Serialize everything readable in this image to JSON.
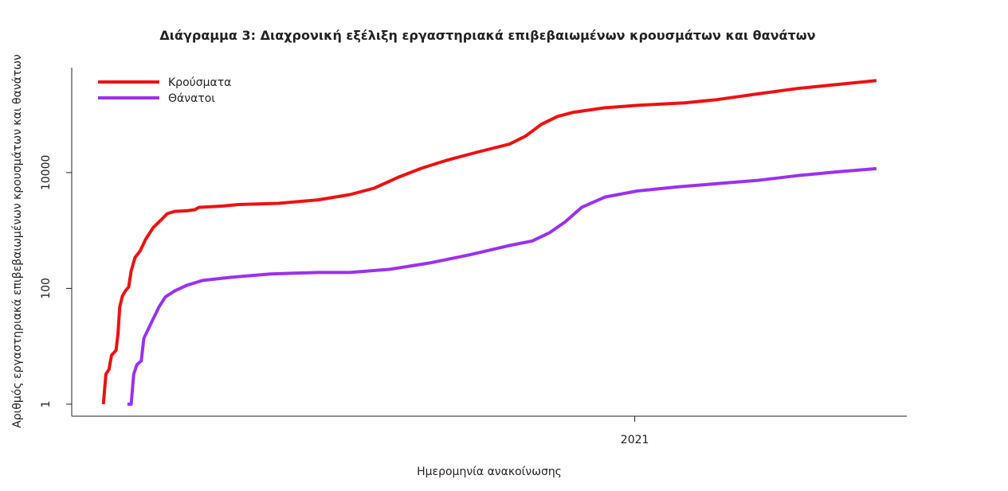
{
  "chart_data": {
    "type": "line",
    "title": "Διάγραμμα 3: Διαχρονική εξέλιξη εργαστηριακά επιβεβαιωμένων κρουσμάτων και θανάτων",
    "x_label": "Ημερομηνία ανακοίνωσης",
    "y_label": "Αριθμός εργαστηριακά επιβεβαιωμένων κρουσμάτων και θανάτων",
    "y_log": true,
    "legend_position": "top-left",
    "xlim": [
      2020.11,
      2021.43
    ],
    "xticks": [
      2021
    ],
    "ylim": [
      0.62,
      650000
    ],
    "yticks": [
      1,
      100,
      10000
    ],
    "series": [
      {
        "name": "Κρούσματα",
        "color": "#ee1111",
        "x": [
          2020.16,
          2020.164,
          2020.169,
          2020.173,
          2020.18,
          2020.183,
          2020.186,
          2020.19,
          2020.195,
          2020.2,
          2020.204,
          2020.21,
          2020.218,
          2020.227,
          2020.239,
          2020.252,
          2020.261,
          2020.273,
          2020.292,
          2020.305,
          2020.311,
          2020.349,
          2020.374,
          2020.437,
          2020.5,
          2020.55,
          2020.588,
          2020.626,
          2020.664,
          2020.702,
          2020.752,
          2020.802,
          2020.827,
          2020.853,
          2020.878,
          2020.903,
          2020.953,
          2021.004,
          2021.079,
          2021.13,
          2021.193,
          2021.256,
          2021.319,
          2021.382
        ],
        "values": [
          1,
          3.3,
          4,
          7,
          8.5,
          16,
          48,
          73,
          91,
          106,
          200,
          340,
          440,
          710,
          1130,
          1550,
          1950,
          2140,
          2190,
          2290,
          2510,
          2650,
          2810,
          2950,
          3390,
          4170,
          5370,
          8300,
          12000,
          16200,
          22700,
          31000,
          42500,
          69000,
          93500,
          110000,
          132000,
          145000,
          160000,
          182000,
          228000,
          283000,
          331000,
          389000
        ]
      },
      {
        "name": "Θάνατοι",
        "color": "#9b30ee",
        "x": [
          2020.198,
          2020.204,
          2020.208,
          2020.213,
          2020.22,
          2020.224,
          2020.236,
          2020.248,
          2020.258,
          2020.273,
          2020.292,
          2020.317,
          2020.361,
          2020.424,
          2020.5,
          2020.55,
          2020.613,
          2020.676,
          2020.739,
          2020.802,
          2020.838,
          2020.865,
          2020.89,
          2020.916,
          2020.953,
          2021.004,
          2021.067,
          2021.13,
          2021.193,
          2021.256,
          2021.319,
          2021.382
        ],
        "values": [
          1,
          1,
          3.3,
          4.8,
          5.6,
          13.7,
          25.7,
          48,
          71,
          91,
          113,
          137,
          155,
          178,
          188,
          188,
          214,
          275,
          380,
          550,
          660,
          910,
          1410,
          2510,
          3780,
          4810,
          5650,
          6440,
          7300,
          8840,
          10300,
          11700
        ]
      }
    ]
  }
}
